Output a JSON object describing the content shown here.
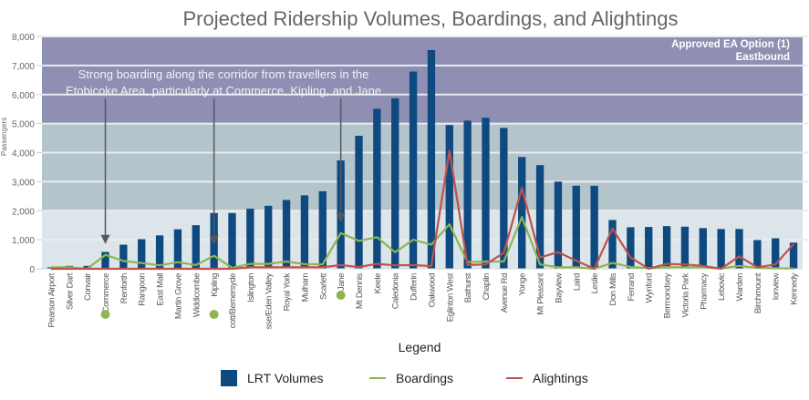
{
  "chart_data": {
    "type": "bar",
    "title": "Projected Ridership Volumes, Boardings, and Alightings",
    "xlabel": "",
    "ylabel": "Passengers",
    "ylim": [
      0,
      8000
    ],
    "yticks": [
      0,
      1000,
      2000,
      3000,
      4000,
      5000,
      6000,
      7000,
      8000
    ],
    "ytick_labels": [
      "0",
      "1,000",
      "2,000",
      "3,000",
      "4,000",
      "5,000",
      "6,000",
      "7,000",
      "8,000"
    ],
    "grid": true,
    "bands": [
      {
        "from": 0,
        "to": 2000,
        "color": "#dce5e9"
      },
      {
        "from": 2000,
        "to": 5000,
        "color": "#b4c4cb"
      },
      {
        "from": 5000,
        "to": 8000,
        "color": "#8e8fb2"
      }
    ],
    "option_label": [
      "Approved EA Option (1)",
      "Eastbound"
    ],
    "annotation": {
      "lines": [
        "Strong boarding along the corridor from travellers in the",
        "Etobicoke Area, particularly at Commerce, Kipling, and Jane"
      ],
      "targets": [
        "Commerce",
        "Kipling",
        "Jane"
      ]
    },
    "highlighted_stations": [
      "Commerce",
      "Kipling",
      "Jane"
    ],
    "categories": [
      "Pearson Airport",
      "Silver Dart",
      "Convair",
      "Commerce",
      "Renforth",
      "Rangoon",
      "East Mall",
      "Martin Grove",
      "Widdicombe",
      "Kipling",
      "cott/Bemersyde",
      "Islington",
      "sse/Eden Valley",
      "Royal York",
      "Mulham",
      "Scarlett",
      "Jane",
      "Mt Dennis",
      "Keele",
      "Caledonia",
      "Dufferin",
      "Oakwood",
      "Eglinton West",
      "Bathurst",
      "Chaplin",
      "Avenue Rd",
      "Yonge",
      "Mt Pleasant",
      "Bayview",
      "Laird",
      "Leslie",
      "Don Mills",
      "Ferrand",
      "Wynford",
      "Bermondsey",
      "Victoria Park",
      "Pharmacy",
      "Lebovic",
      "Warden",
      "Birchmount",
      "Ionview",
      "Kennedy"
    ],
    "series": [
      {
        "name": "LRT Volumes",
        "type": "bar",
        "color": "#0e4a80",
        "values": [
          50,
          100,
          100,
          580,
          830,
          1020,
          1150,
          1360,
          1500,
          1920,
          1920,
          2070,
          2170,
          2370,
          2530,
          2670,
          3730,
          4580,
          5510,
          5870,
          6790,
          7530,
          4950,
          5100,
          5200,
          4850,
          3850,
          3570,
          3000,
          2860,
          2860,
          1680,
          1430,
          1440,
          1470,
          1450,
          1400,
          1370,
          1370,
          990,
          1050,
          900
        ]
      },
      {
        "name": "Boardings",
        "type": "line",
        "color": "#8db551",
        "values": [
          50,
          50,
          0,
          480,
          270,
          200,
          120,
          230,
          130,
          450,
          30,
          170,
          170,
          250,
          160,
          150,
          1230,
          960,
          1090,
          570,
          1000,
          830,
          1530,
          230,
          250,
          250,
          1780,
          150,
          50,
          50,
          0,
          200,
          60,
          20,
          60,
          50,
          50,
          10,
          100,
          30,
          20,
          10
        ]
      },
      {
        "name": "Alightings",
        "type": "line",
        "color": "#c0504d",
        "values": [
          0,
          0,
          0,
          0,
          0,
          0,
          0,
          0,
          0,
          0,
          0,
          50,
          50,
          50,
          50,
          50,
          130,
          60,
          170,
          120,
          130,
          90,
          4070,
          130,
          150,
          550,
          2780,
          390,
          570,
          280,
          0,
          1380,
          390,
          0,
          170,
          150,
          100,
          0,
          430,
          50,
          150,
          850
        ]
      }
    ],
    "legend": {
      "title": "Legend",
      "position": "bottom",
      "entries": [
        "LRT Volumes",
        "Boardings",
        "Alightings"
      ]
    }
  }
}
